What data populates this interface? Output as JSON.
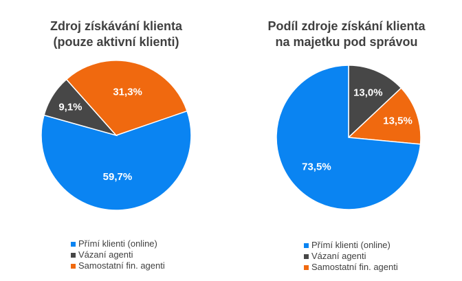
{
  "chart_data": [
    {
      "type": "pie",
      "title_lines": [
        "Zdroj získávání klienta",
        "(pouze aktivní klienti)"
      ],
      "categories": [
        "Přímí klienti (online)",
        "Vázaní agenti",
        "Samostatní fin. agenti"
      ],
      "values": [
        59.7,
        9.1,
        31.3
      ],
      "labels": [
        "59,7%",
        "9,1%",
        "31,3%"
      ],
      "colors": [
        "#0A84F2",
        "#474747",
        "#F0690F"
      ],
      "legend": "bottom"
    },
    {
      "type": "pie",
      "title_lines": [
        "Podíl zdroje získání klienta",
        "na majetku pod správou"
      ],
      "categories": [
        "Přímí klienti (online)",
        "Vázaní agenti",
        "Samostatní fin. agenti"
      ],
      "values": [
        73.5,
        13.0,
        13.5
      ],
      "labels": [
        "73,5%",
        "13,0%",
        "13,5%"
      ],
      "colors": [
        "#0A84F2",
        "#474747",
        "#F0690F"
      ],
      "legend": "bottom"
    }
  ]
}
